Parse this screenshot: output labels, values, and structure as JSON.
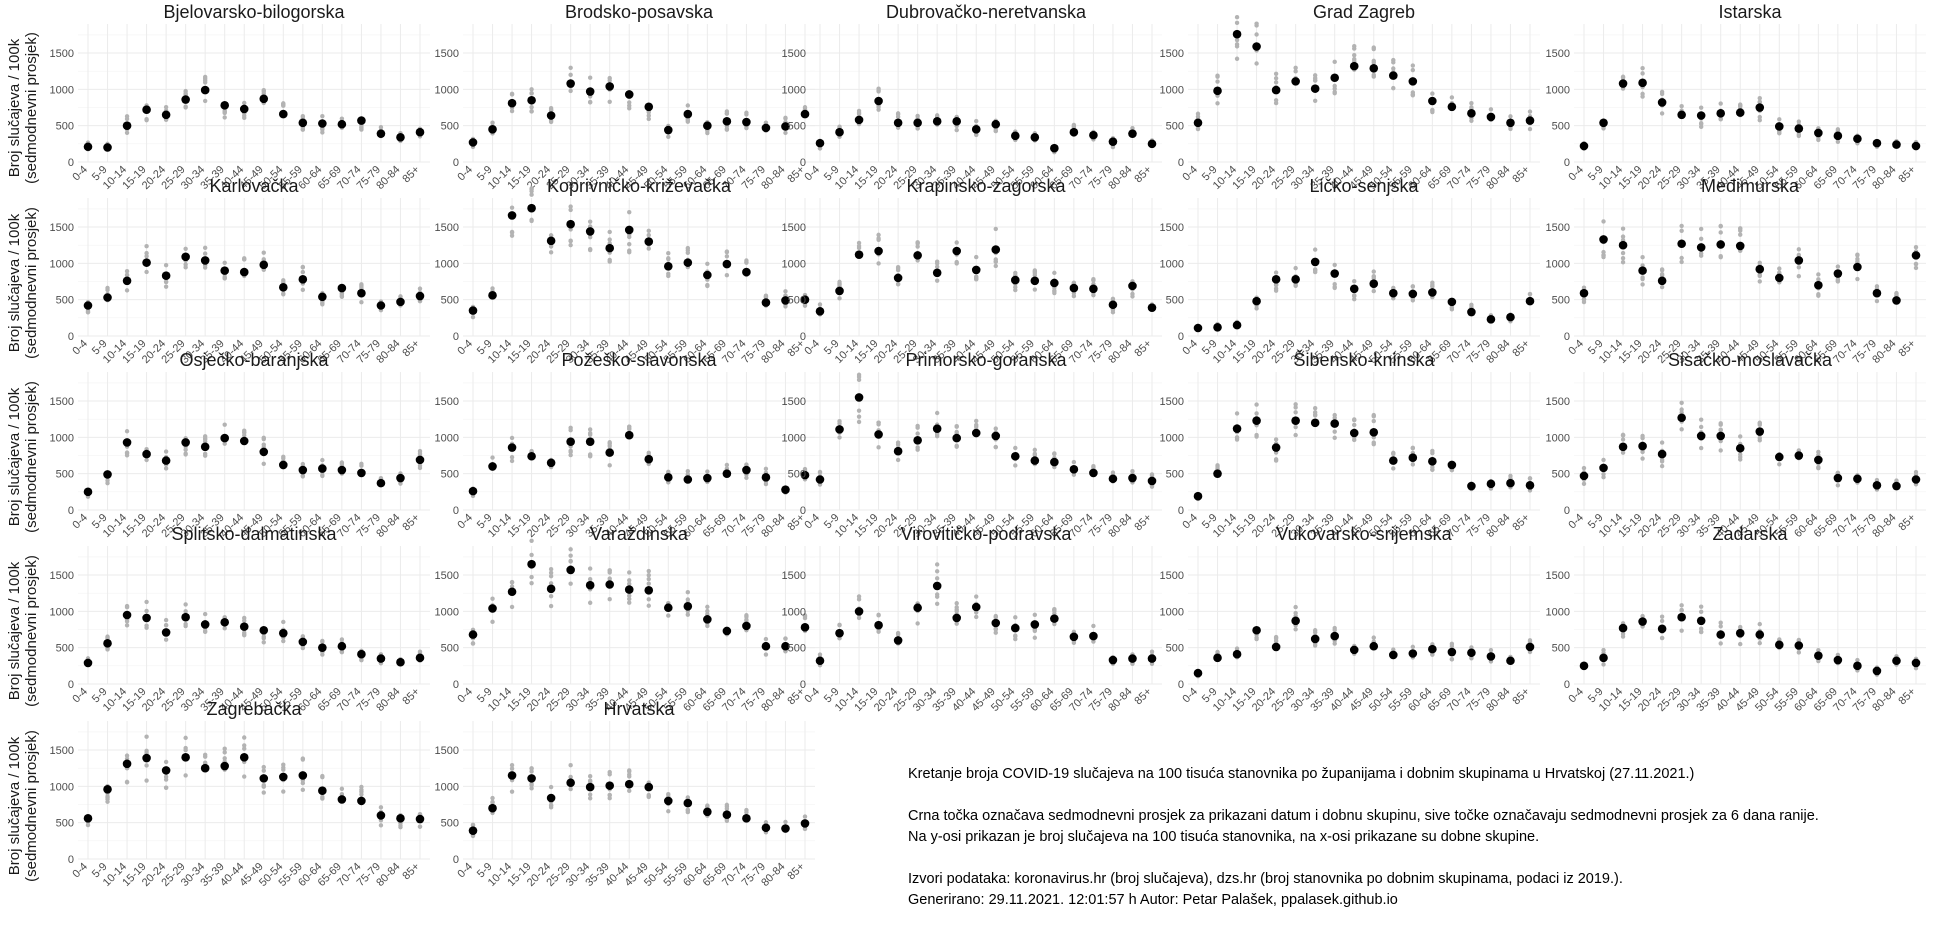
{
  "y_axis_label_line1": "Broj slučajeva / 100k",
  "y_axis_label_line2": "(sedmodnevni prosjek)",
  "caption": {
    "line1": "Kretanje broja COVID-19 slučajeva na 100 tisuća stanovnika po županijama i dobnim skupinama u Hrvatskoj (27.11.2021.)",
    "line2": "Crna točka označava sedmodnevni prosjek za prikazani datum i dobnu skupinu, sive točke označavaju sedmodnevni prosjek za 6 dana ranije.",
    "line3": "Na y-osi prikazan je broj slučajeva na 100 tisuća stanovnika, na x-osi prikazane su dobne skupine.",
    "line4": "Izvori podataka: koronavirus.hr (broj slučajeva), dzs.hr (broj stanovnika po dobnim skupinama, podaci iz 2019.).",
    "line5": "Generirano: 29.11.2021. 12:01:57 h Autor: Petar Palašek, ppalasek.github.io"
  },
  "colors": {
    "current": "#000000",
    "previous": "#b3b3b3",
    "grid": "#ebebeb"
  },
  "chart_data": {
    "type": "scatter",
    "categories": [
      "0-4",
      "5-9",
      "10-14",
      "15-19",
      "20-24",
      "25-29",
      "30-34",
      "35-39",
      "40-44",
      "45-49",
      "50-54",
      "55-59",
      "60-64",
      "65-69",
      "70-74",
      "75-79",
      "80-84",
      "85+"
    ],
    "y_ticks": [
      0,
      500,
      1000,
      1500
    ],
    "ylim": [
      0,
      1900
    ],
    "legend": "none",
    "grid": true,
    "panels": [
      {
        "title": "Bjelovarsko-bilogorska",
        "values": [
          210,
          200,
          500,
          720,
          650,
          860,
          990,
          780,
          730,
          870,
          660,
          540,
          530,
          520,
          570,
          390,
          340,
          410
        ]
      },
      {
        "title": "Brodsko-posavska",
        "values": [
          270,
          450,
          810,
          850,
          640,
          1080,
          970,
          1040,
          930,
          760,
          440,
          660,
          500,
          560,
          550,
          470,
          490,
          660
        ]
      },
      {
        "title": "Dubrovačko-neretvanska",
        "values": [
          260,
          410,
          580,
          840,
          540,
          540,
          560,
          560,
          450,
          520,
          360,
          340,
          190,
          410,
          370,
          280,
          390,
          250
        ]
      },
      {
        "title": "Grad Zagreb",
        "values": [
          540,
          980,
          1760,
          1590,
          990,
          1110,
          1010,
          1160,
          1320,
          1290,
          1190,
          1110,
          840,
          760,
          670,
          620,
          540,
          570
        ]
      },
      {
        "title": "Istarska",
        "values": [
          220,
          540,
          1080,
          1090,
          820,
          650,
          640,
          670,
          680,
          750,
          490,
          460,
          400,
          360,
          320,
          260,
          240,
          220
        ]
      },
      {
        "title": "Karlovačka",
        "values": [
          420,
          530,
          760,
          1010,
          830,
          1090,
          1040,
          900,
          880,
          980,
          670,
          780,
          540,
          660,
          590,
          420,
          470,
          550
        ]
      },
      {
        "title": "Koprivničko-križevačka",
        "values": [
          350,
          560,
          1660,
          1760,
          1310,
          1540,
          1440,
          1210,
          1460,
          1300,
          960,
          1010,
          840,
          990,
          880,
          460,
          490,
          500
        ]
      },
      {
        "title": "Krapinsko-zagorska",
        "values": [
          340,
          620,
          1120,
          1170,
          800,
          1110,
          870,
          1170,
          910,
          1190,
          770,
          760,
          730,
          660,
          650,
          430,
          690,
          390
        ]
      },
      {
        "title": "Ličko-senjska",
        "values": [
          110,
          120,
          150,
          480,
          780,
          780,
          1020,
          860,
          650,
          720,
          590,
          580,
          600,
          470,
          330,
          230,
          260,
          480
        ]
      },
      {
        "title": "Međimurska",
        "values": [
          590,
          1330,
          1250,
          900,
          760,
          1270,
          1220,
          1260,
          1240,
          920,
          800,
          1040,
          700,
          860,
          950,
          590,
          490,
          1110
        ]
      },
      {
        "title": "Osječko-baranjska",
        "values": [
          250,
          490,
          930,
          770,
          680,
          930,
          870,
          990,
          950,
          800,
          620,
          550,
          570,
          550,
          510,
          370,
          440,
          690
        ]
      },
      {
        "title": "Požeško-slavonska",
        "values": [
          260,
          600,
          860,
          740,
          650,
          940,
          940,
          790,
          1030,
          700,
          450,
          420,
          440,
          500,
          550,
          450,
          280,
          480
        ]
      },
      {
        "title": "Primorsko-goranska",
        "values": [
          420,
          1110,
          1550,
          1040,
          810,
          960,
          1120,
          990,
          1060,
          1020,
          740,
          680,
          660,
          560,
          510,
          430,
          440,
          400
        ]
      },
      {
        "title": "Šibensko-kninska",
        "values": [
          190,
          500,
          1120,
          1230,
          860,
          1230,
          1200,
          1190,
          1060,
          1070,
          680,
          720,
          670,
          620,
          330,
          360,
          370,
          340
        ]
      },
      {
        "title": "Sisačko-moslavačka",
        "values": [
          470,
          580,
          870,
          880,
          770,
          1270,
          1020,
          1020,
          850,
          1080,
          730,
          750,
          690,
          440,
          430,
          340,
          330,
          420
        ]
      },
      {
        "title": "Splitsko-dalmatinska",
        "values": [
          290,
          560,
          950,
          910,
          710,
          920,
          820,
          850,
          790,
          740,
          700,
          580,
          500,
          520,
          410,
          350,
          300,
          360
        ]
      },
      {
        "title": "Varaždinska",
        "values": [
          680,
          1040,
          1270,
          1650,
          1310,
          1570,
          1360,
          1370,
          1300,
          1290,
          1050,
          1070,
          890,
          730,
          800,
          520,
          520,
          780
        ]
      },
      {
        "title": "Virovitičko-podravska",
        "values": [
          320,
          700,
          1000,
          810,
          600,
          1050,
          1350,
          910,
          1060,
          840,
          770,
          820,
          900,
          650,
          660,
          330,
          350,
          350
        ]
      },
      {
        "title": "Vukovarsko-srijemska",
        "values": [
          150,
          360,
          410,
          740,
          510,
          870,
          620,
          660,
          470,
          520,
          400,
          420,
          480,
          440,
          430,
          380,
          320,
          510
        ]
      },
      {
        "title": "Zadarska",
        "values": [
          250,
          360,
          770,
          860,
          760,
          920,
          870,
          680,
          700,
          680,
          540,
          530,
          390,
          330,
          250,
          180,
          320,
          290
        ]
      },
      {
        "title": "Zagrebačka",
        "values": [
          560,
          960,
          1310,
          1390,
          1220,
          1400,
          1250,
          1280,
          1400,
          1110,
          1130,
          1150,
          940,
          820,
          800,
          600,
          560,
          550
        ]
      },
      {
        "title": "Hrvatska",
        "values": [
          390,
          700,
          1150,
          1110,
          840,
          1050,
          990,
          1010,
          1030,
          990,
          800,
          770,
          650,
          610,
          560,
          430,
          420,
          490
        ]
      }
    ]
  }
}
